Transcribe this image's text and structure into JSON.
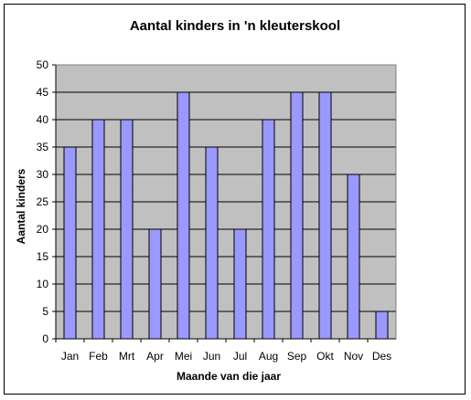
{
  "chart_data": {
    "type": "bar",
    "title": "Aantal kinders in 'n kleuterskool",
    "xlabel": "Maande van die jaar",
    "ylabel": "Aantal kinders",
    "categories": [
      "Jan",
      "Feb",
      "Mrt",
      "Apr",
      "Mei",
      "Jun",
      "Jul",
      "Aug",
      "Sep",
      "Okt",
      "Nov",
      "Des"
    ],
    "values": [
      35,
      40,
      40,
      20,
      45,
      35,
      20,
      40,
      45,
      45,
      30,
      5
    ],
    "ylim": [
      0,
      50
    ],
    "yticks": [
      "0",
      "5",
      "10",
      "15",
      "20",
      "25",
      "30",
      "35",
      "40",
      "45",
      "50"
    ],
    "grid": true,
    "legend": "none",
    "colors": {
      "plot_background": "#c0c0c0",
      "bar_fill": "#9999ff",
      "bar_stroke": "#000000",
      "gridline": "#000000"
    }
  }
}
